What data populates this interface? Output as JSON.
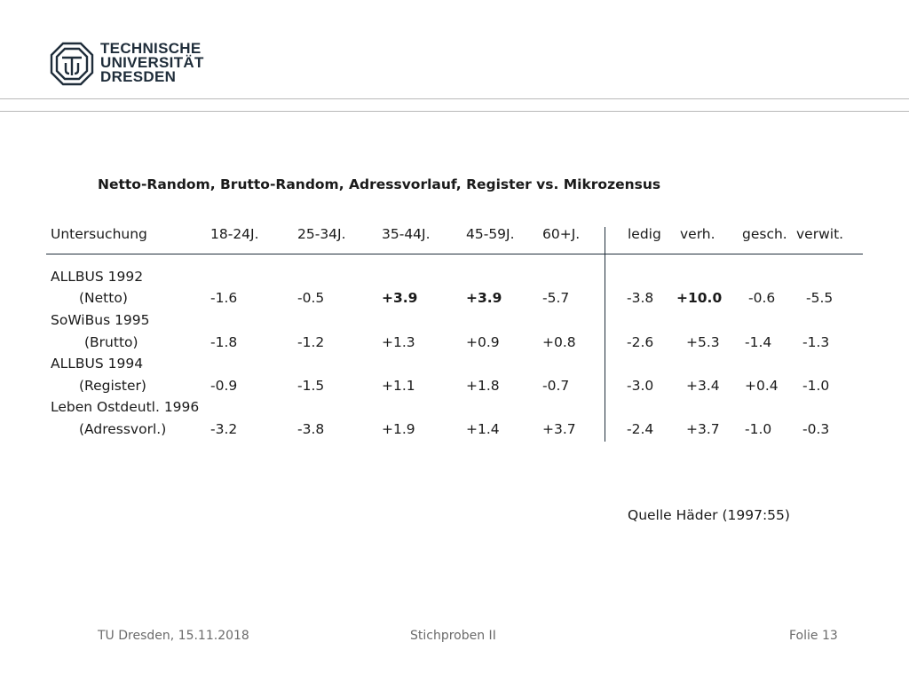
{
  "header": {
    "logo_lines": [
      "TECHNISCHE",
      "UNIVERSITÄT",
      "DRESDEN"
    ]
  },
  "slide": {
    "title": "Netto-Random, Brutto-Random, Adressvorlauf, Register vs. Mikrozensus",
    "table": {
      "headers": [
        "Untersuchung",
        "18-24J.",
        "25-34J.",
        "35-44J.",
        "45-59J.",
        "60+J.",
        "ledig",
        "verh.",
        "gesch.",
        "verwit."
      ],
      "rows": [
        {
          "study": "ALLBUS 1992",
          "type": "(Netto)",
          "values": [
            "-1.6",
            "-0.5",
            "+3.9",
            "+3.9",
            "-5.7",
            "-3.8",
            "+10.0",
            "-0.6",
            "-5.5"
          ]
        },
        {
          "study": "SoWiBus 1995",
          "type": "(Brutto)",
          "values": [
            "-1.8",
            "-1.2",
            "+1.3",
            "+0.9",
            "+0.8",
            "-2.6",
            "+5.3",
            "-1.4",
            "-1.3"
          ]
        },
        {
          "study": "ALLBUS 1994",
          "type": "(Register)",
          "values": [
            "-0.9",
            "-1.5",
            "+1.1",
            "+1.8",
            "-0.7",
            "-3.0",
            "+3.4",
            "+0.4",
            "-1.0"
          ]
        },
        {
          "study": "Leben Ostdeutl. 1996",
          "type": "(Adressvorl.)",
          "values": [
            "-3.2",
            "-3.8",
            "+1.9",
            "+1.4",
            "+3.7",
            "-2.4",
            "+3.7",
            "-1.0",
            "-0.3"
          ]
        }
      ]
    },
    "source": "Quelle Häder (1997:55)"
  },
  "footer": {
    "left": "TU Dresden, 15.11.2018",
    "center": "Stichproben II",
    "right": "Folie 13"
  },
  "colors": {
    "logo": "#1f2d3a",
    "rule": "#b8b8b8",
    "footer_text": "#6b6b6b"
  }
}
